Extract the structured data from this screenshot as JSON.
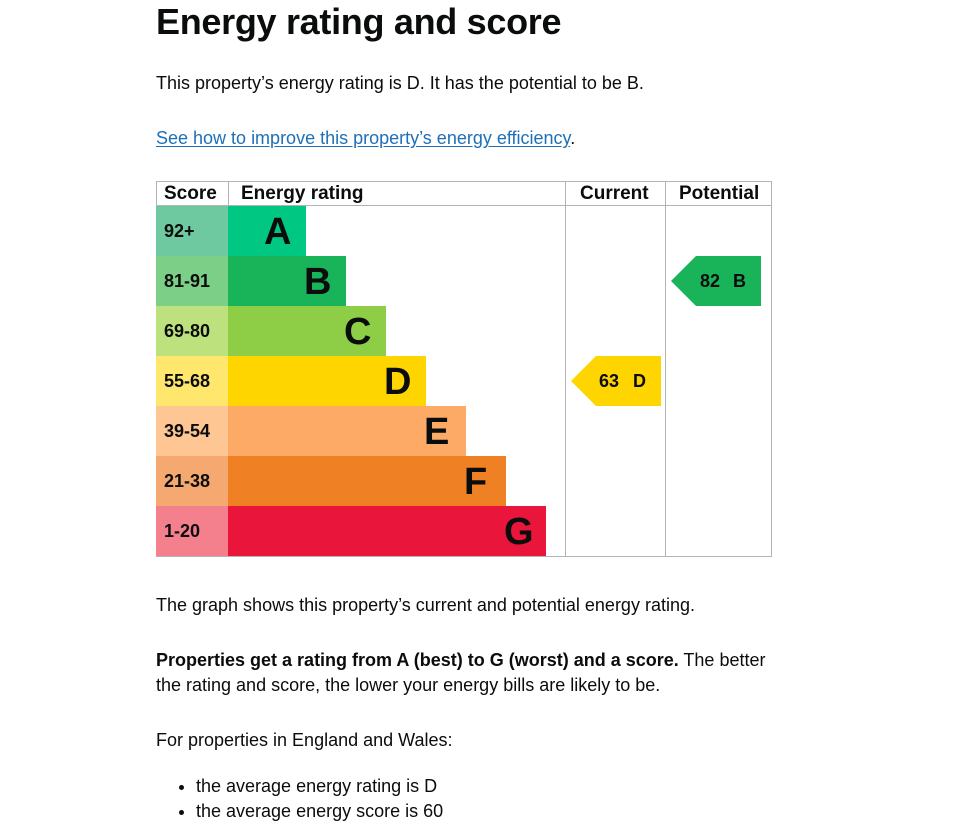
{
  "heading": "Energy rating and score",
  "intro": "This property’s energy rating is D. It has the potential to be B.",
  "improve_link": "See how to improve this property’s energy efficiency",
  "improve_link_suffix": ".",
  "chart_data": {
    "type": "bar",
    "columns": {
      "score": "Score",
      "rating": "Energy rating",
      "current": "Current",
      "potential": "Potential"
    },
    "bands": [
      {
        "score": "92+",
        "letter": "A",
        "score_color": "#6ec9a0",
        "bar_color": "#00c781"
      },
      {
        "score": "81-91",
        "letter": "B",
        "score_color": "#7ccf86",
        "bar_color": "#19b459"
      },
      {
        "score": "69-80",
        "letter": "C",
        "score_color": "#bde27d",
        "bar_color": "#8dce46"
      },
      {
        "score": "55-68",
        "letter": "D",
        "score_color": "#ffe66d",
        "bar_color": "#ffd500"
      },
      {
        "score": "39-54",
        "letter": "E",
        "score_color": "#fdc692",
        "bar_color": "#fcaa65"
      },
      {
        "score": "21-38",
        "letter": "F",
        "score_color": "#f5a870",
        "bar_color": "#ef8023"
      },
      {
        "score": "1-20",
        "letter": "G",
        "score_color": "#f47f8d",
        "bar_color": "#e9153b"
      }
    ],
    "current": {
      "score": "63",
      "letter": "D",
      "band_index": 3,
      "color": "#ffd500"
    },
    "potential": {
      "score": "82",
      "letter": "B",
      "band_index": 1,
      "color": "#19b459"
    }
  },
  "graph_caption": "The graph shows this property’s current and potential energy rating.",
  "ratings_bold": "Properties get a rating from A (best) to G (worst) and a score.",
  "ratings_rest_line1": " The better",
  "ratings_line2": "the rating and score, the lower your energy bills are likely to be.",
  "region_intro": "For properties in England and Wales:",
  "averages": [
    "the average energy rating is D",
    "the average energy score is 60"
  ]
}
